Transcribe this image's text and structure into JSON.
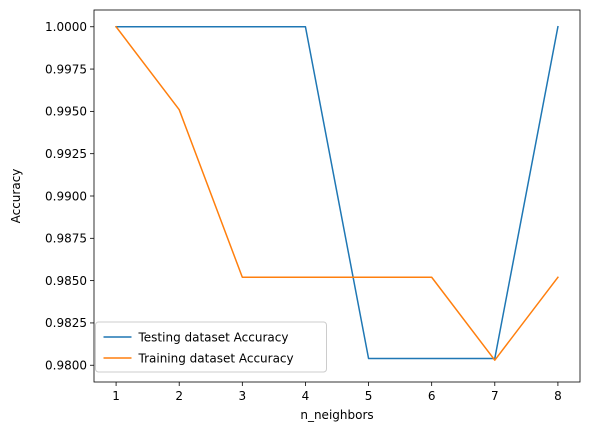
{
  "chart_data": {
    "type": "line",
    "title": "",
    "xlabel": "n_neighbors",
    "ylabel": "Accuracy",
    "x": [
      1,
      2,
      3,
      4,
      5,
      6,
      7,
      8
    ],
    "xticks": [
      "1",
      "2",
      "3",
      "4",
      "5",
      "6",
      "7",
      "8"
    ],
    "yticks": [
      "0.9800",
      "0.9825",
      "0.9850",
      "0.9875",
      "0.9900",
      "0.9925",
      "0.9950",
      "0.9975",
      "1.0000"
    ],
    "xlim": [
      0.65,
      8.35
    ],
    "ylim": [
      0.97901,
      1.00099
    ],
    "grid": false,
    "legend_position": "lower-left",
    "series": [
      {
        "name": "Testing dataset Accuracy",
        "color": "#1f77b4",
        "values": [
          1.0,
          1.0,
          1.0,
          1.0,
          0.9804,
          0.9804,
          0.9804,
          1.0
        ]
      },
      {
        "name": "Training dataset Accuracy",
        "color": "#ff7f0e",
        "values": [
          1.0,
          0.9951,
          0.9852,
          0.9852,
          0.9852,
          0.9852,
          0.9803,
          0.9852
        ]
      }
    ]
  }
}
